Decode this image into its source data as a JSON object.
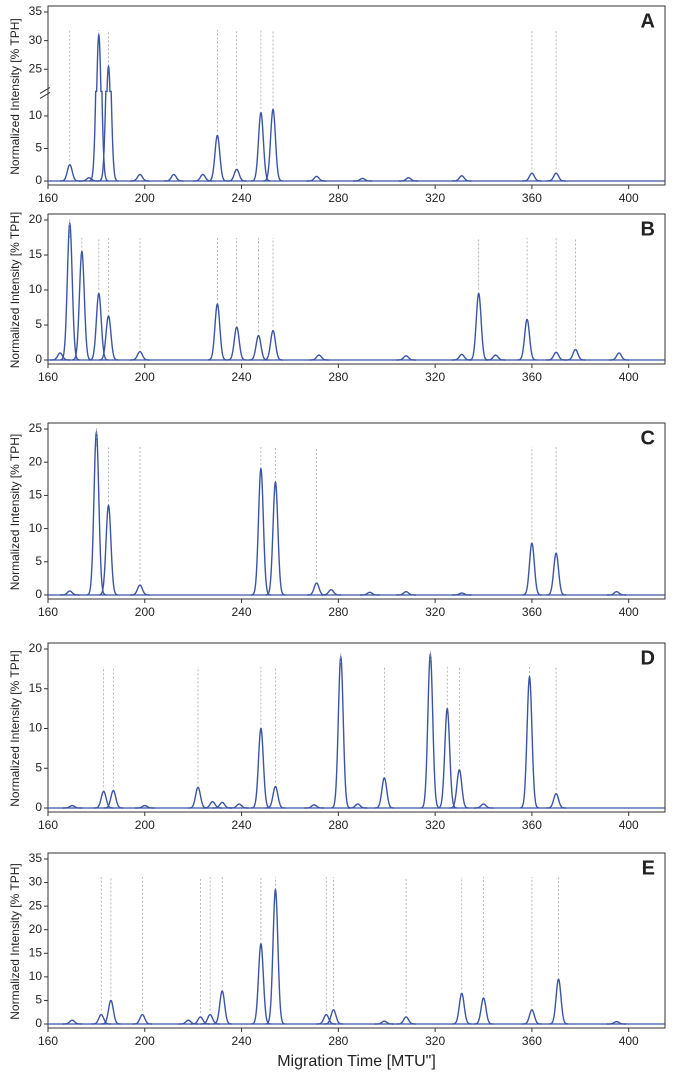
{
  "chart_data": [
    {
      "type": "line",
      "panel": "A",
      "y_label": "Normalized Intensity [% TPH]",
      "color": "#3b55a5",
      "x": [
        169,
        177,
        181,
        185,
        198,
        212,
        224,
        230,
        238,
        248,
        253,
        271,
        290,
        309,
        331,
        360,
        370
      ],
      "values": [
        2.5,
        0.5,
        31,
        25.5,
        1,
        1,
        1,
        7,
        1.8,
        10.5,
        11,
        0.7,
        0.4,
        0.5,
        0.8,
        1.2,
        1.2
      ],
      "xlim": [
        160,
        415
      ],
      "xticks": [
        160,
        200,
        240,
        280,
        320,
        360,
        400
      ],
      "ylim": [
        0,
        35
      ],
      "yticks": [
        0,
        5,
        10,
        25,
        30,
        35
      ],
      "ybreak": [
        13,
        22
      ]
    },
    {
      "type": "line",
      "panel": "B",
      "y_label": "Normalized Intensity [% TPH]",
      "color": "#3b55a5",
      "x": [
        165,
        169,
        174,
        181,
        185,
        198,
        230,
        238,
        247,
        253,
        272,
        308,
        331,
        338,
        345,
        358,
        370,
        378,
        396
      ],
      "values": [
        1,
        19.5,
        15.5,
        9.5,
        6.3,
        1.2,
        8,
        4.7,
        3.5,
        4.2,
        0.7,
        0.6,
        0.8,
        9.5,
        0.7,
        5.8,
        1.1,
        1.5,
        1
      ],
      "xlim": [
        160,
        415
      ],
      "xticks": [
        160,
        200,
        240,
        280,
        320,
        360,
        400
      ],
      "ylim": [
        0,
        20
      ],
      "yticks": [
        0,
        5,
        10,
        15,
        20
      ]
    },
    {
      "type": "line",
      "panel": "C",
      "y_label": "Normalized Intensity [% TPH]",
      "color": "#3b55a5",
      "x": [
        169,
        180,
        185,
        198,
        248,
        254,
        271,
        277,
        293,
        308,
        331,
        360,
        370,
        395
      ],
      "values": [
        0.6,
        24.5,
        13.5,
        1.5,
        19,
        17,
        1.8,
        0.8,
        0.4,
        0.5,
        0.3,
        7.8,
        6.3,
        0.5
      ],
      "xlim": [
        160,
        415
      ],
      "xticks": [
        160,
        200,
        240,
        280,
        320,
        360,
        400
      ],
      "ylim": [
        0,
        25
      ],
      "yticks": [
        0,
        5,
        10,
        15,
        20,
        25
      ]
    },
    {
      "type": "line",
      "panel": "D",
      "y_label": "Normalized Intensity [% TPH]",
      "color": "#3b55a5",
      "x": [
        170,
        183,
        187,
        200,
        222,
        228,
        232,
        239,
        248,
        254,
        270,
        281,
        288,
        299,
        318,
        325,
        330,
        340,
        359,
        370
      ],
      "values": [
        0.3,
        2.1,
        2.2,
        0.3,
        2.6,
        0.8,
        0.7,
        0.5,
        10,
        2.7,
        0.4,
        19,
        0.5,
        3.8,
        19.3,
        12.5,
        4.8,
        0.5,
        16.5,
        1.8
      ],
      "xlim": [
        160,
        415
      ],
      "xticks": [
        160,
        200,
        240,
        280,
        320,
        360,
        400
      ],
      "ylim": [
        0,
        20
      ],
      "yticks": [
        0,
        5,
        10,
        15,
        20
      ]
    },
    {
      "type": "line",
      "panel": "E",
      "y_label": "Normalized Intensity [% TPH]",
      "x_label": "Migration Time [MTU\"]",
      "color": "#3b55a5",
      "x": [
        170,
        182,
        186,
        199,
        218,
        223,
        227,
        232,
        248,
        254,
        275,
        278,
        299,
        308,
        331,
        340,
        360,
        371,
        395
      ],
      "values": [
        0.8,
        2,
        5,
        2,
        0.8,
        1.5,
        2,
        7,
        17,
        28.5,
        2,
        3,
        0.6,
        1.5,
        6.5,
        5.5,
        3,
        9.5,
        0.5
      ],
      "xlim": [
        160,
        415
      ],
      "xticks": [
        160,
        200,
        240,
        280,
        320,
        360,
        400
      ],
      "ylim": [
        0,
        35
      ],
      "yticks": [
        0,
        5,
        10,
        15,
        20,
        25,
        30,
        35
      ]
    }
  ]
}
